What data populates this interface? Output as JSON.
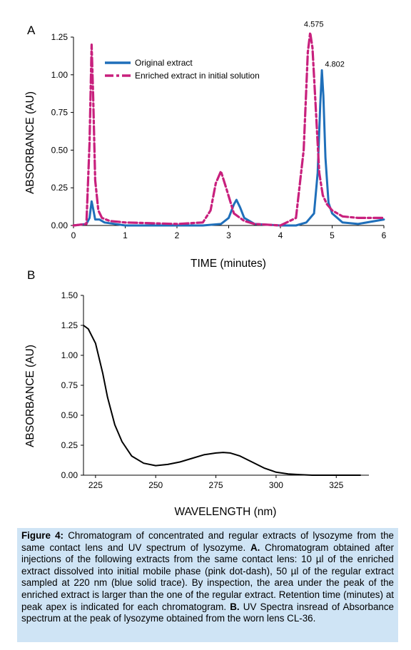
{
  "chart_data": [
    {
      "type": "line",
      "panel_label": "A",
      "xlabel": "TIME (minutes)",
      "ylabel": "ABSORBANCE (AU)",
      "xlim": [
        0,
        6
      ],
      "ylim": [
        0,
        1.25
      ],
      "xticks": [
        "0",
        "1",
        "2",
        "3",
        "4",
        "5",
        "6"
      ],
      "yticks": [
        "0.00",
        "0.25",
        "0.50",
        "0.75",
        "1.00",
        "1.25"
      ],
      "grid": false,
      "legend_position": "top-left",
      "series": [
        {
          "name": "Original extract",
          "color": "#1f6fba",
          "style": "solid",
          "x": [
            0,
            0.25,
            0.31,
            0.35,
            0.38,
            0.42,
            0.5,
            0.6,
            1.0,
            2.0,
            2.5,
            2.85,
            3.0,
            3.1,
            3.15,
            3.22,
            3.3,
            3.5,
            4.0,
            4.3,
            4.5,
            4.65,
            4.72,
            4.77,
            4.802,
            4.83,
            4.87,
            4.93,
            5.0,
            5.2,
            5.5,
            6.0
          ],
          "y": [
            0.0,
            0.01,
            0.05,
            0.16,
            0.11,
            0.04,
            0.04,
            0.02,
            0.0,
            0.0,
            0.0,
            0.01,
            0.05,
            0.14,
            0.17,
            0.12,
            0.05,
            0.01,
            0.0,
            0.0,
            0.02,
            0.08,
            0.35,
            0.8,
            1.03,
            0.86,
            0.45,
            0.15,
            0.08,
            0.02,
            0.01,
            0.04
          ]
        },
        {
          "name": "Enriched extract in initial solution",
          "color": "#c8207d",
          "style": "dashdot",
          "x": [
            0,
            0.25,
            0.31,
            0.35,
            0.38,
            0.42,
            0.48,
            0.55,
            0.7,
            1.0,
            2.0,
            2.5,
            2.65,
            2.75,
            2.85,
            2.95,
            3.1,
            3.3,
            3.5,
            4.0,
            4.3,
            4.45,
            4.53,
            4.575,
            4.62,
            4.68,
            4.75,
            4.82,
            4.9,
            5.0,
            5.2,
            5.5,
            6.0
          ],
          "y": [
            0.0,
            0.01,
            0.55,
            1.2,
            0.85,
            0.3,
            0.1,
            0.05,
            0.03,
            0.02,
            0.01,
            0.02,
            0.1,
            0.28,
            0.36,
            0.25,
            0.08,
            0.03,
            0.01,
            0.0,
            0.05,
            0.5,
            1.15,
            1.28,
            1.18,
            0.8,
            0.35,
            0.2,
            0.14,
            0.1,
            0.06,
            0.05,
            0.05
          ]
        }
      ],
      "annotations": [
        {
          "text": "4.575",
          "x": 4.575,
          "y": 1.28
        },
        {
          "text": "4.802",
          "x": 4.802,
          "y": 1.03
        }
      ]
    },
    {
      "type": "line",
      "panel_label": "B",
      "xlabel": "WAVELENGTH (nm)",
      "ylabel": "ABSORBANCE (AU)",
      "xlim": [
        220,
        335
      ],
      "ylim": [
        0,
        1.5
      ],
      "xticks": [
        "225",
        "250",
        "275",
        "300",
        "325"
      ],
      "yticks": [
        "0.00",
        "0.25",
        "0.50",
        "0.75",
        "1.00",
        "1.25",
        "1.50"
      ],
      "grid": false,
      "series": [
        {
          "color": "#000000",
          "style": "solid",
          "x": [
            220,
            222,
            225,
            228,
            230,
            233,
            236,
            240,
            245,
            250,
            255,
            260,
            265,
            270,
            275,
            278,
            281,
            285,
            290,
            295,
            300,
            305,
            310,
            315,
            320,
            325,
            330,
            335
          ],
          "y": [
            1.25,
            1.22,
            1.1,
            0.85,
            0.65,
            0.42,
            0.28,
            0.16,
            0.1,
            0.08,
            0.09,
            0.11,
            0.14,
            0.17,
            0.185,
            0.19,
            0.185,
            0.16,
            0.11,
            0.06,
            0.025,
            0.01,
            0.005,
            0.0,
            0.0,
            0.0,
            0.0,
            0.0
          ]
        }
      ]
    }
  ],
  "caption": {
    "figure_label": "Figure 4:",
    "part1": " Chromatogram of concentrated and regular extracts of lysozyme from the same contact lens and UV spectrum of lysozyme. ",
    "label_a": "A.",
    "part2": " Chromatogram obtained after injections of the following extracts from the same contact lens: 10 µl of the enriched extract dissolved into initial mobile phase (pink dot-dash), 50 µl of the regular extract sampled at 220 nm (blue solid trace). By inspection, the area under the peak of the enriched extract is larger than the one of the regular extract. Retention time (minutes) at peak apex is indicated for each chromatogram. ",
    "label_b": "B.",
    "part3": " UV Spectra insread of Absorbance spectrum at the peak of lysozyme obtained from the worn lens CL-36."
  }
}
